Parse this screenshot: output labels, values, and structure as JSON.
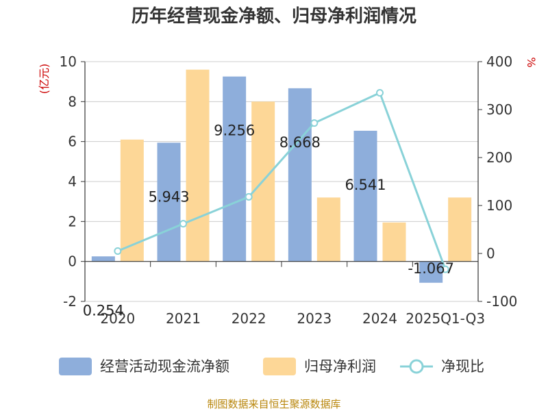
{
  "chart_data": {
    "type": "bar",
    "title": "历年经营现金净额、归母净利润情况",
    "categories": [
      "2020",
      "2021",
      "2022",
      "2023",
      "2024",
      "2025Q1-Q3"
    ],
    "left_axis": {
      "unit": "(亿元)",
      "ylim": [
        -2,
        10
      ],
      "ticks": [
        "-2",
        "0",
        "2",
        "4",
        "6",
        "8",
        "10"
      ]
    },
    "right_axis": {
      "unit": "%",
      "ylim": [
        -100,
        400
      ],
      "ticks": [
        "-100",
        "0",
        "100",
        "200",
        "300",
        "400"
      ]
    },
    "series": [
      {
        "name": "经营活动现金流净额",
        "kind": "bar",
        "axis": "left",
        "values": [
          0.254,
          5.943,
          9.256,
          8.668,
          6.541,
          -1.067
        ],
        "labels": [
          "0.254",
          "5.943",
          "9.256",
          "8.668",
          "6.541",
          "-1.067"
        ]
      },
      {
        "name": "归母净利润",
        "kind": "bar",
        "axis": "left",
        "values": [
          6.1,
          9.6,
          8.0,
          3.2,
          1.95,
          3.2
        ]
      },
      {
        "name": "净现比",
        "kind": "line",
        "axis": "right",
        "values": [
          5,
          62,
          118,
          272,
          335,
          -33
        ]
      }
    ],
    "grid": true,
    "legend_position": "bottom"
  },
  "colors": {
    "cash_flow": "#8eaedb",
    "net_profit": "#fdd797",
    "ratio_line": "#89d2d8",
    "grid": "#cccccc",
    "axis": "#333333",
    "unit": "#cc0000",
    "source": "#b8860b"
  },
  "source": "制图数据来自恒生聚源数据库"
}
